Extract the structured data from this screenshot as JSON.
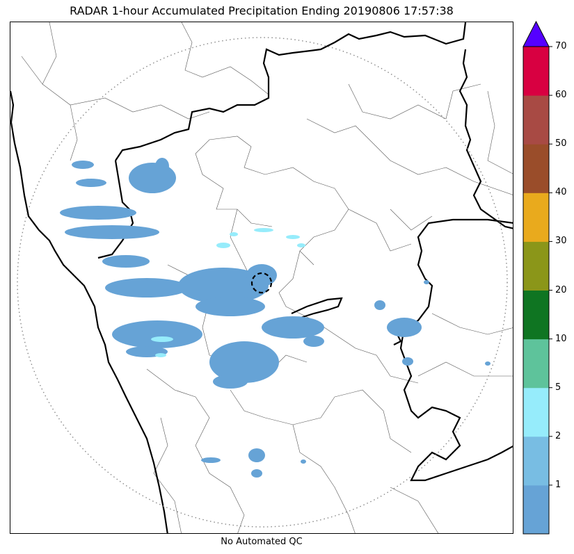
{
  "title": "RADAR 1-hour Accumulated Precipitation Ending 20190806 17:57:38",
  "qc_note": "No Automated QC",
  "colorbar": {
    "extend_color": "#5500ff",
    "segments": [
      {
        "color": "#66a3d6"
      },
      {
        "color": "#78bde3"
      },
      {
        "color": "#96ecfb"
      },
      {
        "color": "#5ec39b"
      },
      {
        "color": "#0f7522"
      },
      {
        "color": "#8b9619"
      },
      {
        "color": "#e9aa1d"
      },
      {
        "color": "#9a4d2a"
      },
      {
        "color": "#a84a44"
      },
      {
        "color": "#d80041"
      }
    ],
    "tick_labels": [
      "1",
      "2",
      "5",
      "10",
      "20",
      "30",
      "40",
      "50",
      "60",
      "70"
    ]
  },
  "map": {
    "range_ring": "dotted",
    "precip_color": "#66a3d6",
    "light_color": "#96ecfb"
  }
}
